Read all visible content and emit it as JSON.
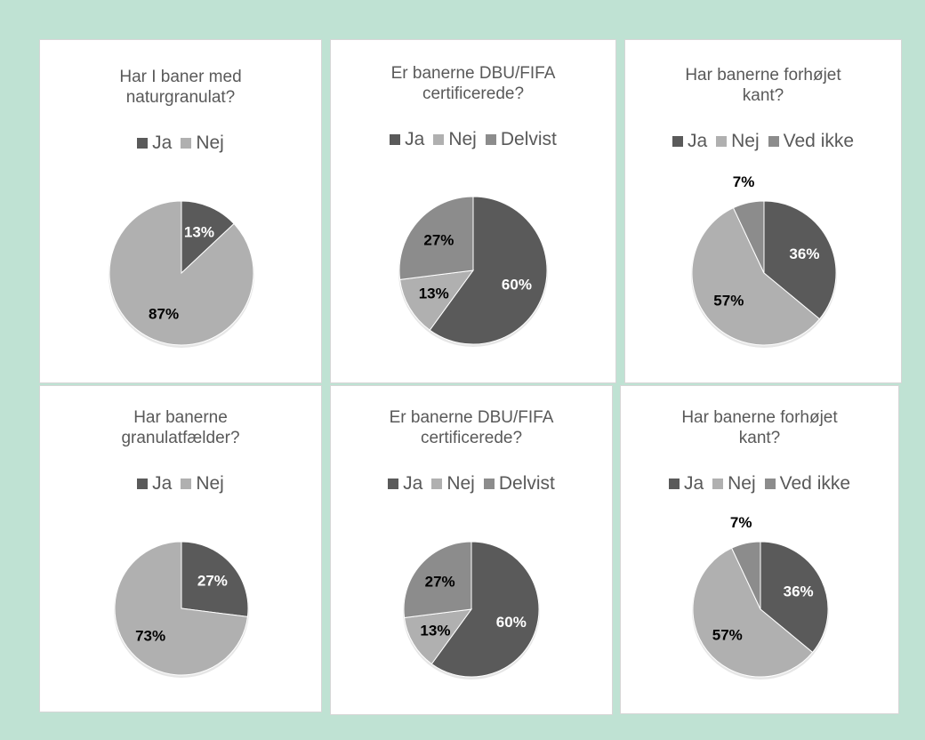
{
  "colors": {
    "background": "#bfe2d3",
    "ja": "#5a5a5a",
    "nej": "#b0b0b0",
    "third": "#8c8c8c"
  },
  "chart_data": [
    {
      "type": "pie",
      "title_lines": [
        "Har I baner med",
        "naturgranulat?"
      ],
      "legend": [
        "Ja",
        "Nej"
      ],
      "slices": [
        {
          "label": "Ja",
          "value": 13,
          "display": "13%"
        },
        {
          "label": "Nej",
          "value": 87,
          "display": "87%"
        }
      ]
    },
    {
      "type": "pie",
      "title_lines": [
        "Er banerne DBU/FIFA",
        "certificerede?"
      ],
      "legend": [
        "Ja",
        "Nej",
        "Delvist"
      ],
      "slices": [
        {
          "label": "Ja",
          "value": 60,
          "display": "60%"
        },
        {
          "label": "Nej",
          "value": 13,
          "display": "13%"
        },
        {
          "label": "Delvist",
          "value": 27,
          "display": "27%"
        }
      ]
    },
    {
      "type": "pie",
      "title_lines": [
        "Har banerne forhøjet",
        "kant?"
      ],
      "legend": [
        "Ja",
        "Nej",
        "Ved ikke"
      ],
      "slices": [
        {
          "label": "Ja",
          "value": 36,
          "display": "36%"
        },
        {
          "label": "Nej",
          "value": 57,
          "display": "57%"
        },
        {
          "label": "Ved ikke",
          "value": 7,
          "display": "7%"
        }
      ]
    },
    {
      "type": "pie",
      "title_lines": [
        "Har banerne",
        "granulatfælder?"
      ],
      "legend": [
        "Ja",
        "Nej"
      ],
      "slices": [
        {
          "label": "Ja",
          "value": 27,
          "display": "27%"
        },
        {
          "label": "Nej",
          "value": 73,
          "display": "73%"
        }
      ]
    },
    {
      "type": "pie",
      "title_lines": [
        "Er banerne DBU/FIFA",
        "certificerede?"
      ],
      "legend": [
        "Ja",
        "Nej",
        "Delvist"
      ],
      "slices": [
        {
          "label": "Ja",
          "value": 60,
          "display": "60%"
        },
        {
          "label": "Nej",
          "value": 13,
          "display": "13%"
        },
        {
          "label": "Delvist",
          "value": 27,
          "display": "27%"
        }
      ]
    },
    {
      "type": "pie",
      "title_lines": [
        "Har banerne forhøjet",
        "kant?"
      ],
      "legend": [
        "Ja",
        "Nej",
        "Ved ikke"
      ],
      "slices": [
        {
          "label": "Ja",
          "value": 36,
          "display": "36%"
        },
        {
          "label": "Nej",
          "value": 57,
          "display": "57%"
        },
        {
          "label": "Ved ikke",
          "value": 7,
          "display": "7%"
        }
      ]
    }
  ]
}
